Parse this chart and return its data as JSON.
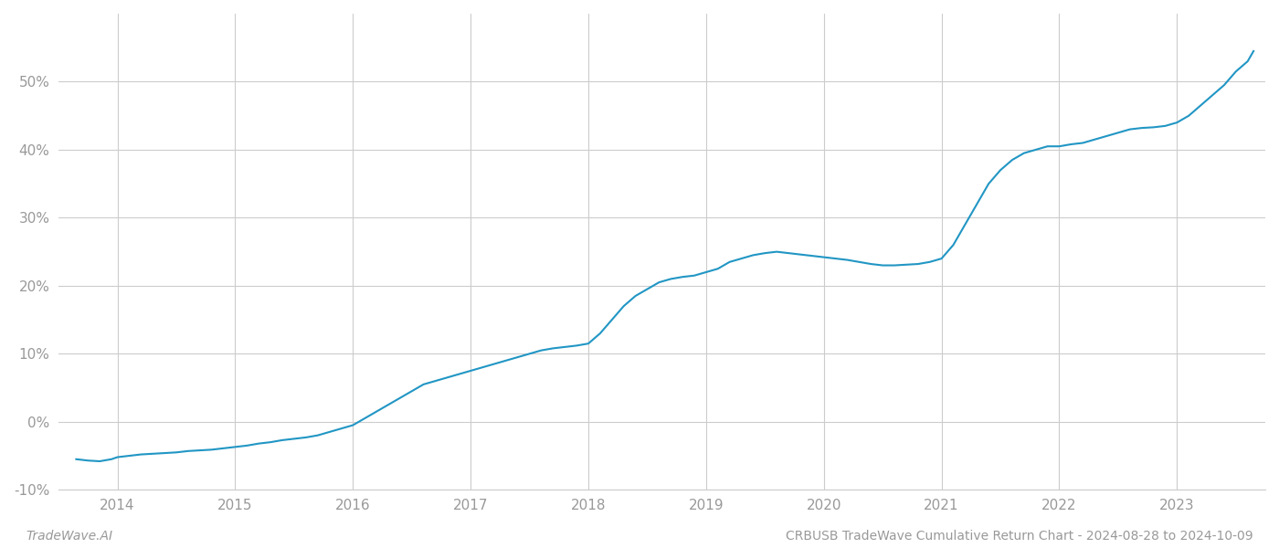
{
  "title": "CRBUSB TradeWave Cumulative Return Chart - 2024-08-28 to 2024-10-09",
  "watermark": "TradeWave.AI",
  "line_color": "#2196c4",
  "background_color": "#ffffff",
  "grid_color": "#cccccc",
  "x_years": [
    2014,
    2015,
    2016,
    2017,
    2018,
    2019,
    2020,
    2021,
    2022,
    2023
  ],
  "x_data": [
    2013.65,
    2013.75,
    2013.85,
    2013.95,
    2014.0,
    2014.1,
    2014.2,
    2014.3,
    2014.4,
    2014.5,
    2014.6,
    2014.7,
    2014.8,
    2014.9,
    2015.0,
    2015.1,
    2015.2,
    2015.3,
    2015.4,
    2015.5,
    2015.6,
    2015.7,
    2015.8,
    2015.9,
    2016.0,
    2016.1,
    2016.2,
    2016.3,
    2016.4,
    2016.5,
    2016.6,
    2016.7,
    2016.8,
    2016.9,
    2017.0,
    2017.1,
    2017.2,
    2017.3,
    2017.4,
    2017.5,
    2017.6,
    2017.7,
    2017.8,
    2017.9,
    2018.0,
    2018.1,
    2018.2,
    2018.3,
    2018.4,
    2018.5,
    2018.6,
    2018.7,
    2018.8,
    2018.9,
    2019.0,
    2019.1,
    2019.2,
    2019.3,
    2019.4,
    2019.5,
    2019.6,
    2019.7,
    2019.8,
    2019.9,
    2020.0,
    2020.1,
    2020.2,
    2020.3,
    2020.4,
    2020.5,
    2020.6,
    2020.7,
    2020.8,
    2020.9,
    2021.0,
    2021.1,
    2021.2,
    2021.3,
    2021.4,
    2021.5,
    2021.6,
    2021.7,
    2021.8,
    2021.9,
    2022.0,
    2022.1,
    2022.2,
    2022.3,
    2022.4,
    2022.5,
    2022.6,
    2022.7,
    2022.8,
    2022.9,
    2023.0,
    2023.1,
    2023.2,
    2023.3,
    2023.4,
    2023.5,
    2023.6,
    2023.65
  ],
  "y_data": [
    -5.5,
    -5.7,
    -5.8,
    -5.5,
    -5.2,
    -5.0,
    -4.8,
    -4.7,
    -4.6,
    -4.5,
    -4.3,
    -4.2,
    -4.1,
    -3.9,
    -3.7,
    -3.5,
    -3.2,
    -3.0,
    -2.7,
    -2.5,
    -2.3,
    -2.0,
    -1.5,
    -1.0,
    -0.5,
    0.5,
    1.5,
    2.5,
    3.5,
    4.5,
    5.5,
    6.0,
    6.5,
    7.0,
    7.5,
    8.0,
    8.5,
    9.0,
    9.5,
    10.0,
    10.5,
    10.8,
    11.0,
    11.2,
    11.5,
    13.0,
    15.0,
    17.0,
    18.5,
    19.5,
    20.5,
    21.0,
    21.3,
    21.5,
    22.0,
    22.5,
    23.5,
    24.0,
    24.5,
    24.8,
    25.0,
    24.8,
    24.6,
    24.4,
    24.2,
    24.0,
    23.8,
    23.5,
    23.2,
    23.0,
    23.0,
    23.1,
    23.2,
    23.5,
    24.0,
    26.0,
    29.0,
    32.0,
    35.0,
    37.0,
    38.5,
    39.5,
    40.0,
    40.5,
    40.5,
    40.8,
    41.0,
    41.5,
    42.0,
    42.5,
    43.0,
    43.2,
    43.3,
    43.5,
    44.0,
    45.0,
    46.5,
    48.0,
    49.5,
    51.5,
    53.0,
    54.5
  ],
  "ylim": [
    -10,
    60
  ],
  "yticks": [
    -10,
    0,
    10,
    20,
    30,
    40,
    50
  ],
  "ytick_labels": [
    "-10%",
    "0%",
    "10%",
    "20%",
    "30%",
    "40%",
    "50%"
  ],
  "xlim": [
    2013.5,
    2023.75
  ],
  "footer_left_color": "#999999",
  "footer_right_color": "#999999",
  "title_color": "#555555",
  "axis_label_color": "#999999",
  "line_width": 1.5
}
